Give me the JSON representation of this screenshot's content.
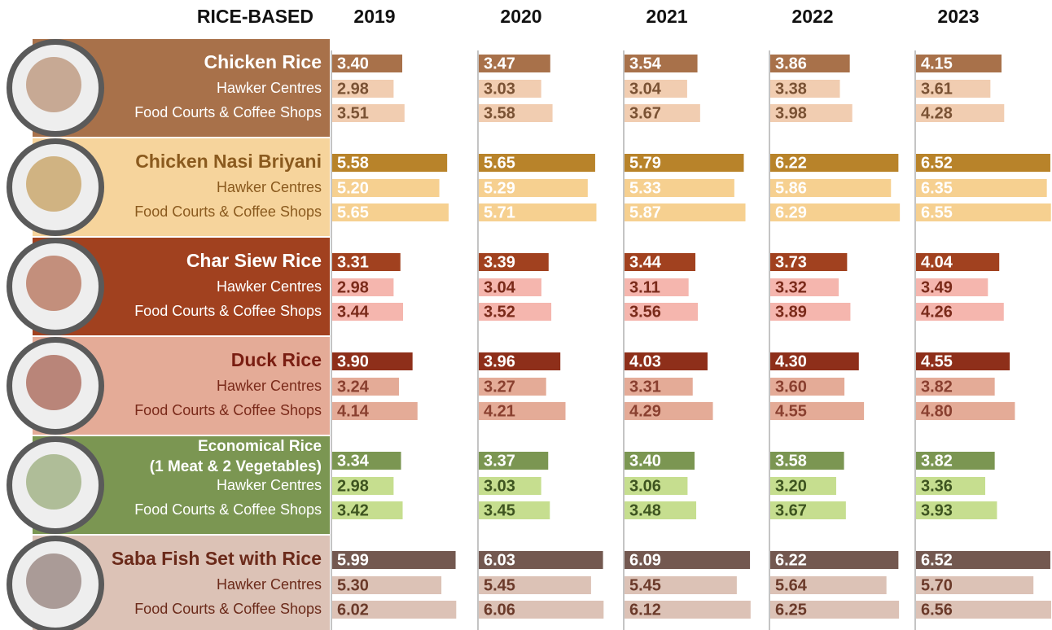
{
  "chart_data": {
    "type": "bar",
    "title": "RICE-BASED",
    "categories": [
      "2019",
      "2020",
      "2021",
      "2022",
      "2023"
    ],
    "groups": [
      {
        "name": [
          "Chicken Rice"
        ],
        "panel_color": "#a8714a",
        "name_color": "#ffffff",
        "label_color": "#ffffff",
        "series": [
          {
            "color": "#a8714a",
            "text_color": "#ffffff",
            "values": [
              3.4,
              3.47,
              3.54,
              3.86,
              4.15
            ],
            "value_labels": [
              "3.40",
              "3.47",
              "3.54",
              "3.86",
              "4.15"
            ]
          },
          {
            "name": "Hawker Centres",
            "color": "#f1cdb1",
            "text_color": "#7a5234",
            "values": [
              2.98,
              3.03,
              3.04,
              3.38,
              3.61
            ],
            "value_labels": [
              "2.98",
              "3.03",
              "3.04",
              "3.38",
              "3.61"
            ]
          },
          {
            "name": "Food Courts & Coffee Shops",
            "color": "#f1cdb1",
            "text_color": "#7a5234",
            "values": [
              3.51,
              3.58,
              3.67,
              3.98,
              4.28
            ],
            "value_labels": [
              "3.51",
              "3.58",
              "3.67",
              "3.98",
              "4.28"
            ]
          }
        ]
      },
      {
        "name": [
          "Chicken Nasi Briyani"
        ],
        "panel_color": "#f6d49c",
        "name_color": "#8a5a1e",
        "label_color": "#8a5a1e",
        "series": [
          {
            "color": "#b8832a",
            "text_color": "#ffffff",
            "values": [
              5.58,
              5.65,
              5.79,
              6.22,
              6.52
            ],
            "value_labels": [
              "5.58",
              "5.65",
              "5.79",
              "6.22",
              "6.52"
            ]
          },
          {
            "name": "Hawker Centres",
            "color": "#f6d090",
            "text_color": "#ffffff",
            "values": [
              5.2,
              5.29,
              5.33,
              5.86,
              6.35
            ],
            "value_labels": [
              "5.20",
              "5.29",
              "5.33",
              "5.86",
              "6.35"
            ]
          },
          {
            "name": "Food Courts & Coffee Shops",
            "color": "#f6d090",
            "text_color": "#ffffff",
            "values": [
              5.65,
              5.71,
              5.87,
              6.29,
              6.55
            ],
            "value_labels": [
              "5.65",
              "5.71",
              "5.87",
              "6.29",
              "6.55"
            ]
          }
        ]
      },
      {
        "name": [
          "Char Siew Rice"
        ],
        "panel_color": "#a1411f",
        "name_color": "#ffffff",
        "label_color": "#ffffff",
        "series": [
          {
            "color": "#a1411f",
            "text_color": "#ffffff",
            "values": [
              3.31,
              3.39,
              3.44,
              3.73,
              4.04
            ],
            "value_labels": [
              "3.31",
              "3.39",
              "3.44",
              "3.73",
              "4.04"
            ]
          },
          {
            "name": "Hawker Centres",
            "color": "#f5b6ae",
            "text_color": "#7a2a1a",
            "values": [
              2.98,
              3.04,
              3.11,
              3.32,
              3.49
            ],
            "value_labels": [
              "2.98",
              "3.04",
              "3.11",
              "3.32",
              "3.49"
            ]
          },
          {
            "name": "Food Courts & Coffee Shops",
            "color": "#f5b6ae",
            "text_color": "#7a2a1a",
            "values": [
              3.44,
              3.52,
              3.56,
              3.89,
              4.26
            ],
            "value_labels": [
              "3.44",
              "3.52",
              "3.56",
              "3.89",
              "4.26"
            ]
          }
        ]
      },
      {
        "name": [
          "Duck Rice"
        ],
        "panel_color": "#e4ab97",
        "name_color": "#7a1e12",
        "label_color": "#7a2a1a",
        "series": [
          {
            "color": "#8e2f1a",
            "text_color": "#ffffff",
            "values": [
              3.9,
              3.96,
              4.03,
              4.3,
              4.55
            ],
            "value_labels": [
              "3.90",
              "3.96",
              "4.03",
              "4.30",
              "4.55"
            ]
          },
          {
            "name": "Hawker Centres",
            "color": "#e4ab97",
            "text_color": "#8a4030",
            "values": [
              3.24,
              3.27,
              3.31,
              3.6,
              3.82
            ],
            "value_labels": [
              "3.24",
              "3.27",
              "3.31",
              "3.60",
              "3.82"
            ]
          },
          {
            "name": "Food Courts & Coffee Shops",
            "color": "#e4ab97",
            "text_color": "#8a4030",
            "values": [
              4.14,
              4.21,
              4.29,
              4.55,
              4.8
            ],
            "value_labels": [
              "4.14",
              "4.21",
              "4.29",
              "4.55",
              "4.80"
            ]
          }
        ]
      },
      {
        "name": [
          "Economical Rice",
          "(1 Meat & 2 Vegetables)"
        ],
        "panel_color": "#7b9652",
        "name_color": "#ffffff",
        "label_color": "#ffffff",
        "series": [
          {
            "color": "#7b9652",
            "text_color": "#ffffff",
            "values": [
              3.34,
              3.37,
              3.4,
              3.58,
              3.82
            ],
            "value_labels": [
              "3.34",
              "3.37",
              "3.40",
              "3.58",
              "3.82"
            ]
          },
          {
            "name": "Hawker Centres",
            "color": "#c6de8f",
            "text_color": "#3e5420",
            "values": [
              2.98,
              3.03,
              3.06,
              3.2,
              3.36
            ],
            "value_labels": [
              "2.98",
              "3.03",
              "3.06",
              "3.20",
              "3.36"
            ]
          },
          {
            "name": "Food Courts & Coffee Shops",
            "color": "#c6de8f",
            "text_color": "#3e5420",
            "values": [
              3.42,
              3.45,
              3.48,
              3.67,
              3.93
            ],
            "value_labels": [
              "3.42",
              "3.45",
              "3.48",
              "3.67",
              "3.93"
            ]
          }
        ]
      },
      {
        "name": [
          "Saba Fish Set with Rice"
        ],
        "panel_color": "#dcc2b6",
        "name_color": "#6b2a1a",
        "label_color": "#6b2a1a",
        "series": [
          {
            "color": "#735850",
            "text_color": "#ffffff",
            "values": [
              5.99,
              6.03,
              6.09,
              6.22,
              6.52
            ],
            "value_labels": [
              "5.99",
              "6.03",
              "6.09",
              "6.22",
              "6.52"
            ]
          },
          {
            "name": "Hawker Centres",
            "color": "#dcc2b6",
            "text_color": "#6b3a2a",
            "values": [
              5.3,
              5.45,
              5.45,
              5.64,
              5.7
            ],
            "value_labels": [
              "5.30",
              "5.45",
              "5.45",
              "5.64",
              "5.70"
            ]
          },
          {
            "name": "Food Courts & Coffee Shops",
            "color": "#dcc2b6",
            "text_color": "#6b3a2a",
            "values": [
              6.02,
              6.06,
              6.12,
              6.25,
              6.56
            ],
            "value_labels": [
              "6.02",
              "6.06",
              "6.12",
              "6.25",
              "6.56"
            ]
          }
        ]
      }
    ]
  }
}
